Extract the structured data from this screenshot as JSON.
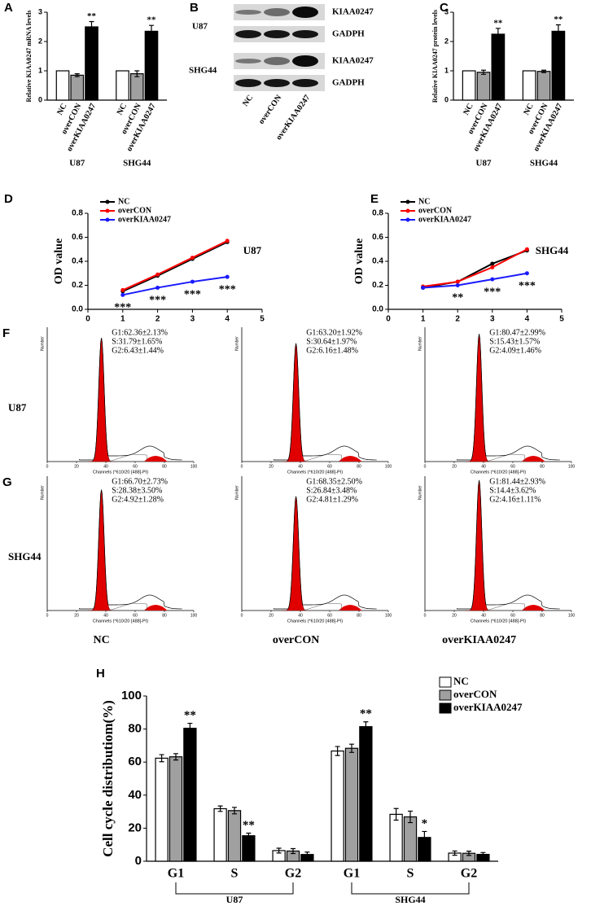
{
  "chart_data": [
    {
      "type": "bar",
      "panel": "A",
      "ylabel": "Relative KIAA0247 mRNA levels",
      "categories": [
        "U87",
        "SHG44"
      ],
      "ylim": [
        0,
        3
      ],
      "yticks": [
        0,
        1,
        2,
        3
      ],
      "series": [
        {
          "name": "NC",
          "color": "#ffffff",
          "values": [
            1,
            1
          ],
          "errors": [
            0,
            0
          ],
          "annotations": [
            null,
            null
          ]
        },
        {
          "name": "overCON",
          "color": "#a0a0a0",
          "values": [
            0.85,
            0.9
          ],
          "errors": [
            0.05,
            0.1
          ],
          "annotations": [
            null,
            null
          ]
        },
        {
          "name": "overKIAA0247",
          "color": "#000000",
          "values": [
            2.5,
            2.35
          ],
          "errors": [
            0.18,
            0.2
          ],
          "annotations": [
            "**",
            "**"
          ]
        }
      ]
    },
    {
      "type": "bar",
      "panel": "C",
      "ylabel": "Relative KIAA0247 protein levels",
      "categories": [
        "U87",
        "SHG44"
      ],
      "ylim": [
        0,
        3
      ],
      "yticks": [
        0,
        1,
        2,
        3
      ],
      "series": [
        {
          "name": "NC",
          "color": "#ffffff",
          "values": [
            1,
            1
          ],
          "errors": [
            0,
            0
          ],
          "annotations": [
            null,
            null
          ]
        },
        {
          "name": "overCON",
          "color": "#a0a0a0",
          "values": [
            0.95,
            0.98
          ],
          "errors": [
            0.07,
            0.04
          ],
          "annotations": [
            null,
            null
          ]
        },
        {
          "name": "overKIAA0247",
          "color": "#000000",
          "values": [
            2.25,
            2.35
          ],
          "errors": [
            0.2,
            0.22
          ],
          "annotations": [
            "**",
            "**"
          ]
        }
      ]
    },
    {
      "type": "line",
      "panel": "D",
      "ylabel": "OD value",
      "annotation": "U87",
      "legend": "upper left",
      "x": [
        1,
        2,
        3,
        4
      ],
      "xlim": [
        0,
        5
      ],
      "xticks": [
        0,
        1,
        2,
        3,
        4,
        5
      ],
      "ylim": [
        0,
        0.8
      ],
      "yticks": [
        {
          "value": 0,
          "label": "0.0"
        },
        0.2,
        0.4,
        0.6,
        0.8
      ],
      "series": [
        {
          "name": "NC",
          "color": "#000000",
          "values": [
            0.15,
            0.28,
            0.42,
            0.56
          ],
          "annotations": [
            null,
            null,
            null,
            null
          ]
        },
        {
          "name": "overCON",
          "color": "#ff0000",
          "values": [
            0.16,
            0.29,
            0.43,
            0.57
          ],
          "annotations": [
            null,
            null,
            null,
            null
          ]
        },
        {
          "name": "overKIAA0247",
          "color": "#1a1aff",
          "values": [
            0.12,
            0.18,
            0.23,
            0.27
          ],
          "annotations": [
            "***",
            "***",
            "***",
            "***"
          ]
        }
      ]
    },
    {
      "type": "line",
      "panel": "E",
      "ylabel": "OD value",
      "annotation": "SHG44",
      "legend": "upper left",
      "x": [
        1,
        2,
        3,
        4
      ],
      "xlim": [
        0,
        5
      ],
      "xticks": [
        0,
        1,
        2,
        3,
        4,
        5
      ],
      "ylim": [
        0,
        0.8
      ],
      "yticks": [
        {
          "value": 0,
          "label": "0.0"
        },
        0.2,
        0.4,
        0.6,
        0.8
      ],
      "series": [
        {
          "name": "NC",
          "color": "#000000",
          "values": [
            0.18,
            0.23,
            0.38,
            0.49
          ],
          "annotations": [
            null,
            null,
            null,
            null
          ]
        },
        {
          "name": "overCON",
          "color": "#ff0000",
          "values": [
            0.19,
            0.23,
            0.35,
            0.5
          ],
          "annotations": [
            null,
            null,
            null,
            null
          ]
        },
        {
          "name": "overKIAA0247",
          "color": "#1a1aff",
          "values": [
            0.18,
            0.2,
            0.25,
            0.3
          ],
          "annotations": [
            null,
            "**",
            "***",
            "***"
          ]
        }
      ]
    },
    {
      "type": "bar",
      "panel": "H",
      "ylabel": "Cell cycle distributiom(%)",
      "legend": "upper right",
      "categories": [
        "G1",
        "S",
        "G2",
        "G1",
        "S",
        "G2"
      ],
      "groups": [
        "U87",
        "SHG44"
      ],
      "ylim": [
        0,
        100
      ],
      "yticks": [
        0,
        20,
        40,
        60,
        80,
        100
      ],
      "series": [
        {
          "name": "NC",
          "color": "#ffffff",
          "values": [
            62.36,
            31.79,
            6.43,
            66.7,
            28.38,
            4.92
          ],
          "errors": [
            2.13,
            1.65,
            1.44,
            2.73,
            3.5,
            1.28
          ],
          "annotations": [
            null,
            null,
            null,
            null,
            null,
            null
          ]
        },
        {
          "name": "overCON",
          "color": "#a0a0a0",
          "values": [
            63.2,
            30.64,
            6.16,
            68.35,
            26.84,
            4.81
          ],
          "errors": [
            1.92,
            1.97,
            1.48,
            2.5,
            3.48,
            1.29
          ],
          "annotations": [
            null,
            null,
            null,
            null,
            null,
            null
          ]
        },
        {
          "name": "overKIAA0247",
          "color": "#000000",
          "values": [
            80.47,
            15.43,
            4.09,
            81.44,
            14.4,
            4.16
          ],
          "errors": [
            2.99,
            1.57,
            1.46,
            2.93,
            3.62,
            1.11
          ],
          "annotations": [
            "**",
            "**",
            null,
            "**",
            "*",
            null
          ]
        }
      ]
    }
  ],
  "blot": {
    "panel": "B",
    "cell_lines": [
      "U87",
      "SHG44"
    ],
    "bands": [
      "KIAA0247",
      "GADPH"
    ],
    "lanes": [
      "NC",
      "overCON",
      "overKIAA0247"
    ]
  },
  "cytometry": {
    "panels": [
      "F",
      "G"
    ],
    "rows": [
      "U87",
      "SHG44"
    ],
    "columns": [
      "NC",
      "overCON",
      "overKIAA0247"
    ],
    "x_axis_label": "Channels (*610/20 [488]-PI)",
    "y_axis_label": "Number",
    "xticks": [
      0,
      20,
      40,
      60,
      80,
      100
    ],
    "stats": [
      [
        [
          "G1:62.36±2.13%",
          "S:31.79±1.65%",
          "G2:6.43±1.44%"
        ],
        [
          "G1:63.20±1.92%",
          "S:30.64±1.97%",
          "G2:6.16±1.48%"
        ],
        [
          "G1:80.47±2.99%",
          "S:15.43±1.57%",
          "G2:4.09±1.46%"
        ]
      ],
      [
        [
          "G1:66.70±2.73%",
          "S:28.38±3.50%",
          "G2:4.92±1.28%"
        ],
        [
          "G1:68.35±2.50%",
          "S:26.84±3.48%",
          "G2:4.81±1.29%"
        ],
        [
          "G1:81.44±2.93%",
          "S:14.4±3.62%",
          "G2:4.16±1.11%"
        ]
      ]
    ]
  }
}
